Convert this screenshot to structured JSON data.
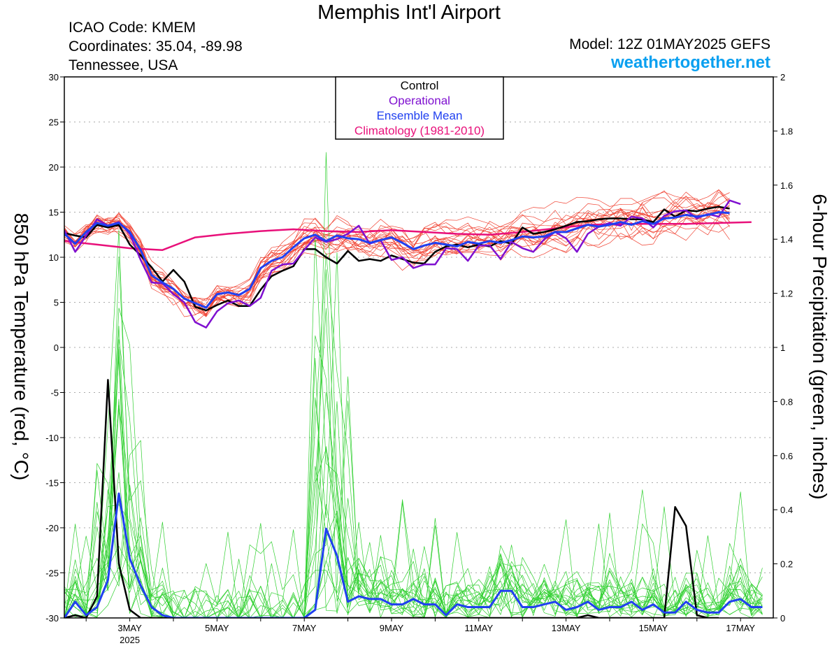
{
  "header": {
    "title": "Memphis Int'l Airport",
    "icao": "ICAO Code: KMEM",
    "coordinates": "Coordinates: 35.04, -89.98",
    "location": "Tennessee, USA",
    "model": "Model: 12Z 01MAY2025 GEFS",
    "site": "weathertogether.net"
  },
  "colors": {
    "control": "#000000",
    "operational": "#7f10d0",
    "ensemble_mean": "#2040f0",
    "climatology": "#e8107a",
    "members_temp": "#f04030",
    "members_precip": "#30d030",
    "site": "#0aa0f0"
  },
  "chart_data": {
    "type": "line",
    "title": "Memphis Int'l Airport",
    "ylabel": "850 hPa Temperature (red, °C)",
    "y2label": "6-hour Precipitation (green, inches)",
    "ylim": [
      -30,
      30
    ],
    "y2lim": [
      0,
      2
    ],
    "yticks": [
      30,
      25,
      20,
      15,
      10,
      5,
      0,
      -5,
      -10,
      -15,
      -20,
      -25,
      -30
    ],
    "y2ticks": [
      2,
      1.8,
      1.6,
      1.4,
      1.2,
      1,
      0.8,
      0.6,
      0.4,
      0.2,
      0
    ],
    "x_start_day": 1.5,
    "x_end_day": 17.75,
    "x_tick_days": [
      3,
      5,
      7,
      9,
      11,
      13,
      15,
      17
    ],
    "x_tick_labels": [
      "3MAY",
      "5MAY",
      "7MAY",
      "9MAY",
      "11MAY",
      "13MAY",
      "15MAY",
      "17MAY"
    ],
    "x_sub_label": "2025",
    "legend": {
      "position": "top-center",
      "entries": [
        {
          "label": "Control",
          "color": "#000000"
        },
        {
          "label": "Operational",
          "color": "#7f10d0"
        },
        {
          "label": "Ensemble Mean",
          "color": "#2040f0"
        },
        {
          "label": "Climatology (1981-2010)",
          "color": "#e8107a"
        }
      ]
    },
    "temperature": {
      "control": [
        12.7,
        12.4,
        12.2,
        13.6,
        13.3,
        13.6,
        11.4,
        10.2,
        8.9,
        7.3,
        8.6,
        7.3,
        4.5,
        4.1,
        4.7,
        5.2,
        4.6,
        4.6,
        6.4,
        7.9,
        8.5,
        9.0,
        10.9,
        10.9,
        10.0,
        9.3,
        10.7,
        9.6,
        9.8,
        9.6,
        10.2,
        9.8,
        9.4,
        9.3,
        10.6,
        11.2,
        11.4,
        11.1,
        11.4,
        11.2,
        11.8,
        11.5,
        13.3,
        12.6,
        12.8,
        13.1,
        13.5,
        13.9,
        14.0,
        14.2,
        14.3,
        14.3,
        14.2,
        14.2,
        13.9,
        15.3,
        14.5,
        15.2,
        15.1,
        15.4,
        15.6,
        15.4
      ],
      "operational": [
        13.0,
        10.6,
        12.4,
        14.2,
        13.5,
        13.9,
        12.6,
        9.7,
        7.2,
        7.1,
        5.9,
        5.0,
        2.8,
        2.2,
        4.0,
        4.9,
        5.2,
        4.6,
        5.5,
        8.5,
        9.2,
        9.3,
        10.8,
        12.2,
        11.7,
        12.0,
        12.6,
        13.5,
        11.5,
        11.9,
        9.7,
        10.0,
        8.8,
        9.2,
        9.2,
        11.0,
        10.9,
        9.6,
        11.3,
        11.3,
        9.8,
        11.7,
        11.0,
        10.6,
        12.0,
        12.8,
        12.1,
        10.6,
        12.6,
        13.4,
        13.8,
        13.5,
        14.5,
        14.3,
        13.3,
        14.6,
        15.1,
        15.2,
        14.3,
        14.8,
        14.5,
        16.3,
        15.9
      ],
      "mean": [
        12.6,
        11.5,
        12.8,
        13.8,
        13.5,
        13.8,
        12.8,
        10.8,
        8.0,
        7.2,
        6.5,
        5.4,
        4.9,
        4.4,
        5.9,
        6.1,
        5.8,
        6.5,
        8.8,
        9.6,
        10.0,
        11.1,
        12.1,
        12.5,
        11.8,
        12.4,
        12.1,
        12.0,
        11.6,
        11.9,
        12.2,
        11.6,
        10.9,
        11.3,
        11.6,
        11.4,
        11.2,
        11.7,
        11.5,
        11.8,
        11.6,
        11.9,
        12.3,
        12.2,
        12.3,
        12.8,
        12.8,
        13.2,
        13.6,
        13.4,
        13.6,
        13.9,
        13.6,
        14.0,
        13.7,
        14.3,
        14.4,
        14.7,
        14.5,
        14.7,
        15.0,
        14.9
      ],
      "climatology": [
        11.8,
        11.4,
        11.0,
        10.8,
        12.2,
        12.6,
        12.9,
        13.1,
        12.9,
        12.8,
        13.0,
        12.8,
        12.6,
        12.5,
        12.8,
        13.2,
        13.6,
        13.7,
        13.7,
        13.7,
        13.8,
        13.9
      ]
    },
    "precipitation": {
      "control": [
        0,
        0.01,
        0,
        0.08,
        0.88,
        0.2,
        0.03,
        0,
        0,
        0,
        0,
        0,
        0,
        0,
        0,
        0,
        0,
        0,
        0,
        0,
        0,
        0,
        0,
        0,
        0,
        0,
        0,
        0,
        0,
        0,
        0,
        0,
        0,
        0,
        0,
        0,
        0,
        0,
        0,
        0,
        0,
        0,
        0,
        0,
        0,
        0,
        0,
        0,
        0.01,
        0,
        0,
        0,
        0,
        0,
        0,
        0,
        0.41,
        0.34,
        0.01,
        0,
        0
      ],
      "mean": [
        0,
        0.06,
        0.01,
        0.04,
        0.14,
        0.46,
        0.22,
        0.12,
        0.04,
        0.01,
        0,
        0,
        0,
        0,
        0,
        0,
        0,
        0,
        0,
        0,
        0,
        0,
        0,
        0.03,
        0.33,
        0.23,
        0.06,
        0.08,
        0.07,
        0.07,
        0.05,
        0.05,
        0.07,
        0.05,
        0.05,
        0.01,
        0.05,
        0.04,
        0.04,
        0.04,
        0.1,
        0.1,
        0.04,
        0.04,
        0.05,
        0.06,
        0.03,
        0.04,
        0.06,
        0.03,
        0.04,
        0.04,
        0.06,
        0.03,
        0.05,
        0.02,
        0.02,
        0.06,
        0.03,
        0.02,
        0.02,
        0.06,
        0.07,
        0.04,
        0.04
      ]
    }
  }
}
